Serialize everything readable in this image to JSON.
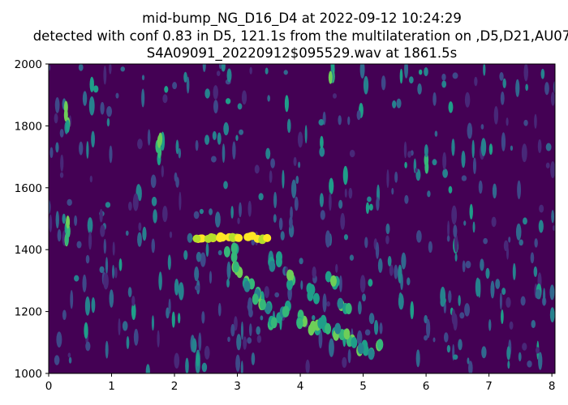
{
  "chart_data": {
    "type": "heatmap",
    "title_lines": [
      "mid-bump_NG_D16_D4 at 2022-09-12 10:24:29",
      "detected with conf 0.83 in D5, 121.1s from the multilateration on ,D5,D21,AU07",
      "S4A09091_20220912$095529.wav at 1861.5s"
    ],
    "xlabel": "",
    "ylabel": "",
    "xlim": [
      0,
      8.05
    ],
    "ylim": [
      1000,
      2000
    ],
    "xticks": [
      "0",
      "1",
      "2",
      "3",
      "4",
      "5",
      "6",
      "7",
      "8"
    ],
    "yticks": [
      "1000",
      "1200",
      "1400",
      "1600",
      "1800",
      "2000"
    ],
    "colormap": "viridis",
    "background_color": "#440154",
    "grid": false,
    "call_contour": [
      {
        "x": 2.4,
        "y": 1435
      },
      {
        "x": 2.6,
        "y": 1440
      },
      {
        "x": 2.8,
        "y": 1438
      },
      {
        "x": 3.0,
        "y": 1440
      },
      {
        "x": 3.2,
        "y": 1440
      },
      {
        "x": 3.4,
        "y": 1435
      },
      {
        "x": 2.9,
        "y": 1390
      },
      {
        "x": 3.0,
        "y": 1340
      },
      {
        "x": 3.15,
        "y": 1290
      },
      {
        "x": 3.3,
        "y": 1250
      },
      {
        "x": 3.45,
        "y": 1210
      },
      {
        "x": 3.6,
        "y": 1175
      },
      {
        "x": 3.8,
        "y": 1210
      },
      {
        "x": 4.0,
        "y": 1170
      },
      {
        "x": 4.2,
        "y": 1150
      },
      {
        "x": 4.4,
        "y": 1160
      },
      {
        "x": 4.6,
        "y": 1130
      },
      {
        "x": 4.8,
        "y": 1110
      },
      {
        "x": 5.0,
        "y": 1090
      },
      {
        "x": 5.2,
        "y": 1075
      },
      {
        "x": 3.6,
        "y": 1360
      },
      {
        "x": 3.9,
        "y": 1300
      },
      {
        "x": 4.2,
        "y": 1260
      },
      {
        "x": 4.5,
        "y": 1300
      },
      {
        "x": 4.7,
        "y": 1220
      }
    ],
    "hotspots": [
      {
        "x": 0.3,
        "y": 1830
      },
      {
        "x": 0.3,
        "y": 1470
      },
      {
        "x": 1.75,
        "y": 1730
      },
      {
        "x": 4.5,
        "y": 1970
      },
      {
        "x": 6.0,
        "y": 1700
      }
    ]
  }
}
